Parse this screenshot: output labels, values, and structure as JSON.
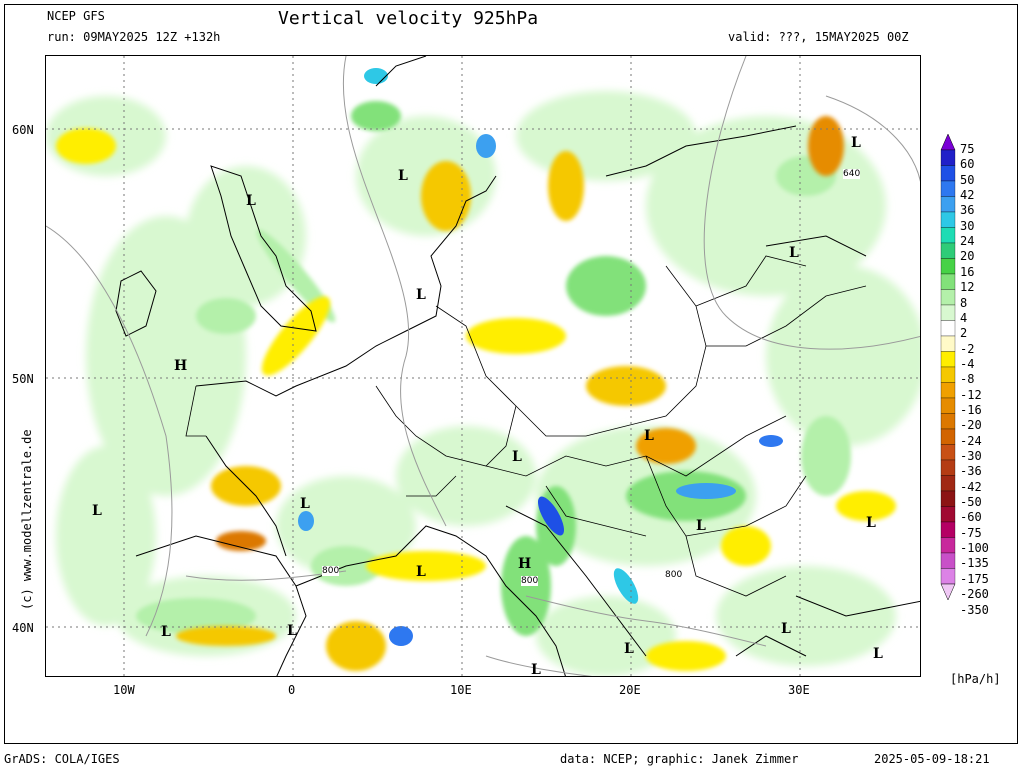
{
  "header": {
    "model": "NCEP GFS",
    "run": "run: 09MAY2025 12Z +132h",
    "title": "Vertical velocity 925hPa",
    "valid": "valid: ???, 15MAY2025 00Z"
  },
  "axes": {
    "lat_labels": [
      "60N",
      "50N",
      "40N"
    ],
    "lon_labels": [
      "10W",
      "0",
      "10E",
      "20E",
      "30E"
    ]
  },
  "pressure_labels": [
    {
      "text": "H",
      "name": "high-pressure-label"
    },
    {
      "text": "H",
      "name": "high-pressure-label"
    },
    {
      "text": "L",
      "name": "low-pressure-label"
    }
  ],
  "contour_labels": [
    "640",
    "800",
    "800",
    "800"
  ],
  "colorbar": {
    "unit": "[hPa/h]",
    "levels": [
      "75",
      "60",
      "50",
      "42",
      "36",
      "30",
      "24",
      "20",
      "16",
      "12",
      "8",
      "4",
      "2",
      "-2",
      "-4",
      "-8",
      "-12",
      "-16",
      "-20",
      "-24",
      "-30",
      "-36",
      "-42",
      "-50",
      "-60",
      "-75",
      "-100",
      "-135",
      "-175",
      "-260",
      "-350"
    ],
    "colors": [
      "#7a00d6",
      "#2020c8",
      "#1e50e6",
      "#2e78f0",
      "#3ca0f0",
      "#2ec8e6",
      "#1edcb4",
      "#2ecc78",
      "#46d246",
      "#82e17a",
      "#b4f0aa",
      "#d8f8d0",
      "#ffffff",
      "#fffac8",
      "#ffee00",
      "#f5c800",
      "#f0a000",
      "#e68c00",
      "#dc7800",
      "#d26400",
      "#c85014",
      "#b43c14",
      "#a02814",
      "#8c1414",
      "#a00a32",
      "#b40064",
      "#c8289c",
      "#c850c8",
      "#dc82e6",
      "#f0c8f5"
    ]
  },
  "footer": {
    "left": "GrADS: COLA/IGES",
    "credit": "data: NCEP; graphic: Janek Zimmer",
    "timestamp": "2025-05-09-18:21"
  },
  "copyright": "(c) www.modellzentrale.de"
}
